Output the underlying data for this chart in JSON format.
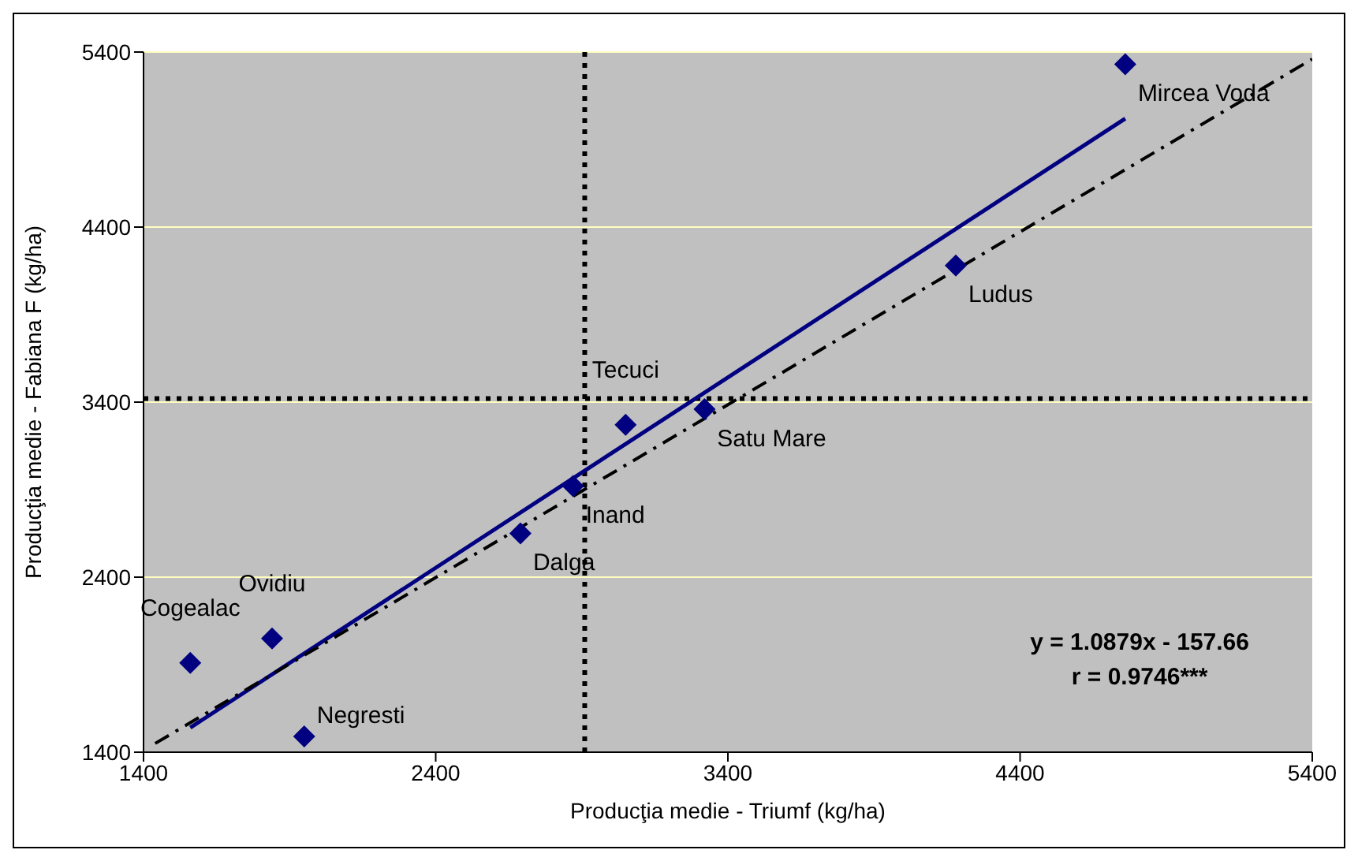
{
  "chart_data": {
    "type": "scatter",
    "xlabel": "Producţia medie - Triumf (kg/ha)",
    "ylabel": "Producţia medie - Fabiana F (kg/ha)",
    "xlim": [
      1400,
      5400
    ],
    "ylim": [
      1400,
      5400
    ],
    "xticks": [
      1400,
      2400,
      3400,
      4400,
      5400
    ],
    "yticks": [
      1400,
      2400,
      3400,
      4400,
      5400
    ],
    "grid": "y",
    "series": [
      {
        "color": "#000080",
        "marker": "diamond",
        "x": [
          4760,
          4180,
          3320,
          3050,
          2870,
          2690,
          1840,
          1560,
          1950
        ],
        "values": [
          5330,
          4180,
          3360,
          3270,
          2920,
          2650,
          2050,
          1910,
          1490
        ]
      },
      {
        "type": "line",
        "color": "#000080",
        "marker": "none",
        "line_style": "solid",
        "x": [
          1560,
          4760
        ],
        "values": [
          1540,
          5020
        ]
      },
      {
        "type": "line",
        "color": "#000000",
        "marker": "none",
        "line_style": "dashed",
        "x": [
          1440,
          5400
        ],
        "values": [
          1450,
          5360
        ]
      }
    ],
    "ref_lines": [
      {
        "axis": "x",
        "value": 2910,
        "label": null,
        "color": "#000000",
        "line_style": "dotted"
      },
      {
        "axis": "y",
        "value": 3420,
        "label": null,
        "color": "#000000",
        "line_style": "dotted"
      }
    ],
    "annotations": [
      {
        "text": "Mircea Voda",
        "x": 4760,
        "y": 5330
      },
      {
        "text": "Ludus",
        "x": 4180,
        "y": 4180
      },
      {
        "text": "Satu Mare",
        "x": 3320,
        "y": 3360
      },
      {
        "text": "Tecuci",
        "x": 3050,
        "y": 3270
      },
      {
        "text": "Inand",
        "x": 2870,
        "y": 2920
      },
      {
        "text": "Dalga",
        "x": 2690,
        "y": 2650
      },
      {
        "text": "Ovidiu",
        "x": 1840,
        "y": 2050
      },
      {
        "text": "Cogealac",
        "x": 1560,
        "y": 1910
      },
      {
        "text": "Negresti",
        "x": 1950,
        "y": 1490
      },
      "y = 1.0879x - 157.66",
      "r = 0.9746***"
    ]
  }
}
